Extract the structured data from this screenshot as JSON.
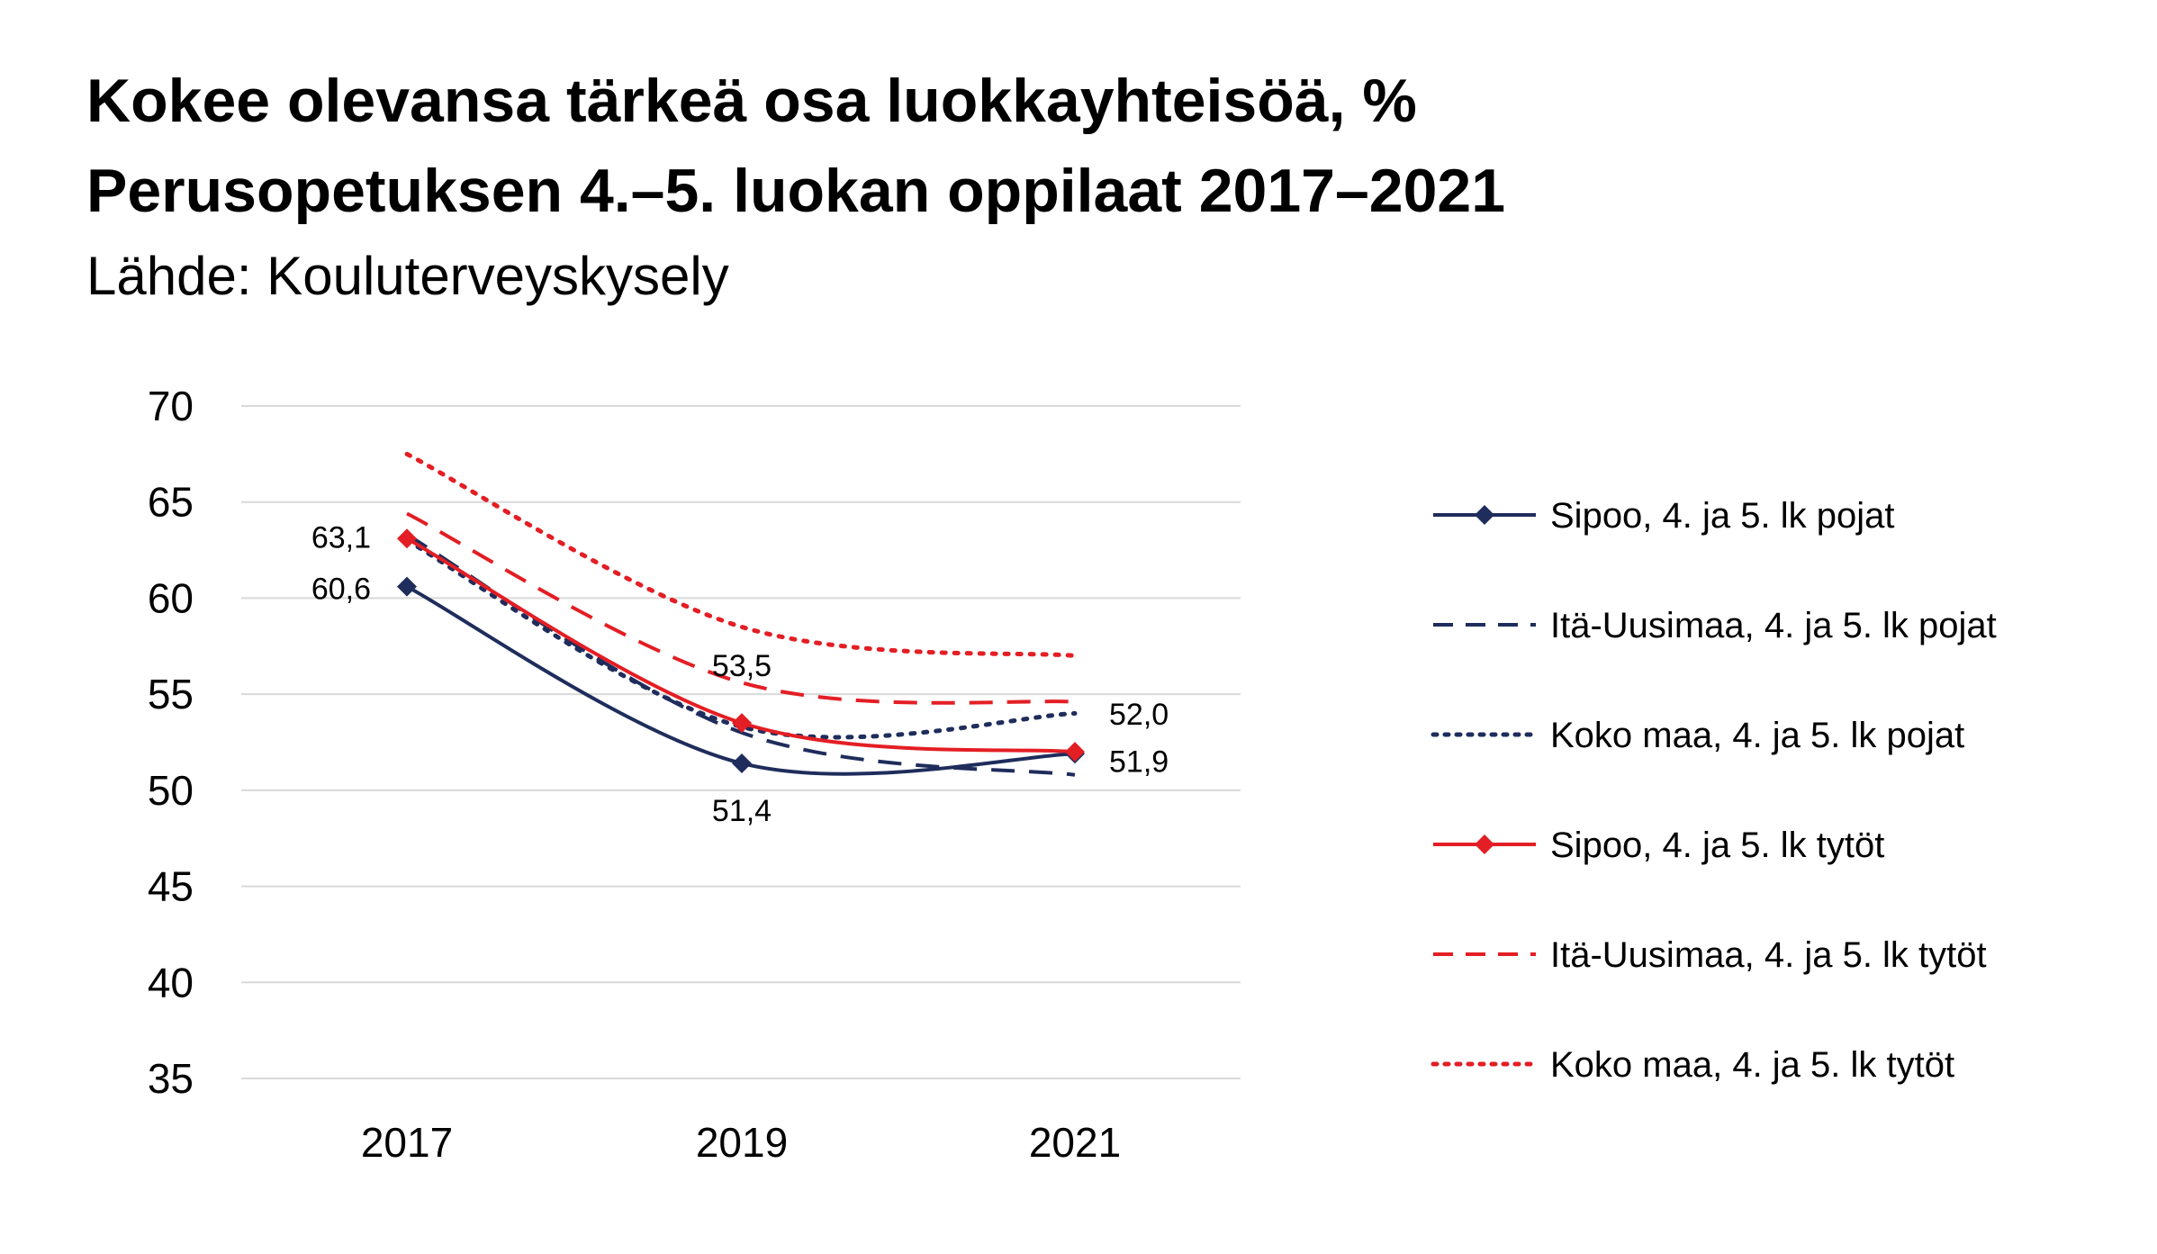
{
  "header": {
    "title_line1": "Kokee olevansa tärkeä osa luokkayhteisöä, %",
    "title_line2": "Perusopetuksen 4.–5. luokan oppilaat 2017–2021",
    "source": "Lähde: Kouluterveyskysely"
  },
  "chart_data": {
    "type": "line",
    "title": "Kokee olevansa tärkeä osa luokkayhteisöä, %",
    "subtitle": "Perusopetuksen 4.–5. luokan oppilaat 2017–2021",
    "categories": [
      "2017",
      "2019",
      "2021"
    ],
    "ylim": [
      35,
      70
    ],
    "yticks": [
      35,
      40,
      45,
      50,
      55,
      60,
      65,
      70
    ],
    "grid": true,
    "legend_position": "right",
    "series": [
      {
        "name": "Sipoo, 4. ja 5. lk pojat",
        "values": [
          60.6,
          51.4,
          51.9
        ],
        "color": "#1f2d5c",
        "dash": "solid",
        "marker": "diamond",
        "labels": [
          "60,6",
          "51,4",
          "51,9"
        ]
      },
      {
        "name": "Itä-Uusimaa, 4. ja 5. lk pojat",
        "values": [
          63.3,
          53.0,
          50.8
        ],
        "color": "#1f2d5c",
        "dash": "dashed",
        "marker": "none"
      },
      {
        "name": "Koko maa, 4. ja 5. lk pojat",
        "values": [
          63.0,
          53.3,
          54.0
        ],
        "color": "#1f2d5c",
        "dash": "dotted",
        "marker": "none"
      },
      {
        "name": "Sipoo, 4. ja 5. lk tytöt",
        "values": [
          63.1,
          53.5,
          52.0
        ],
        "color": "#e31e24",
        "dash": "solid",
        "marker": "diamond",
        "labels": [
          "63,1",
          "53,5",
          "52,0"
        ]
      },
      {
        "name": "Itä-Uusimaa, 4. ja 5. lk tytöt",
        "values": [
          64.4,
          55.6,
          54.6
        ],
        "color": "#e31e24",
        "dash": "dashed",
        "marker": "none"
      },
      {
        "name": "Koko maa, 4. ja 5. lk tytöt",
        "values": [
          67.5,
          58.5,
          57.0
        ],
        "color": "#e31e24",
        "dash": "dotted",
        "marker": "none"
      }
    ]
  }
}
